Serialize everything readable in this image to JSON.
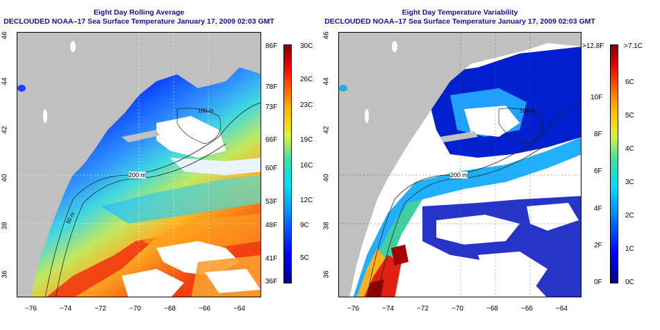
{
  "left_panel": {
    "title_line1": "Eight Day Rolling Average",
    "title_line2": "DECLOUDED NOAA–17 Sea Surface Temperature January 17, 2009 02:03 GMT",
    "x_ticks": [
      "−76",
      "−74",
      "−72",
      "−70",
      "−68",
      "−66",
      "−64"
    ],
    "y_ticks": [
      "46",
      "44",
      "42",
      "40",
      "38",
      "36"
    ],
    "contour_labels": [
      "200 m",
      "50 m",
      "100 m"
    ],
    "colorbar_f": [
      "86F",
      "78F",
      "73F",
      "66F",
      "60F",
      "53F",
      "48F",
      "41F",
      "36F"
    ],
    "colorbar_c": [
      "30C",
      "26C",
      "23C",
      "19C",
      "16C",
      "12C",
      "9C",
      "5C"
    ]
  },
  "right_panel": {
    "title_line1": "Eight Day Temperature Variability",
    "title_line2": "DECLOUDED NOAA–17 Sea Surface Temperature January 17, 2009 02:03 GMT",
    "x_ticks": [
      "−76",
      "−74",
      "−72",
      "−70",
      "−68",
      "−66",
      "−64"
    ],
    "y_ticks": [
      "46",
      "44",
      "42",
      "40",
      "38",
      "36"
    ],
    "contour_labels": [
      "200 m",
      "100 m"
    ],
    "colorbar_f": [
      ">12.8F",
      "10F",
      "8F",
      "6F",
      "4F",
      "2F",
      "0F"
    ],
    "colorbar_c": [
      ">7.1C",
      "6C",
      "5C",
      "4C",
      "3C",
      "2C",
      "1C",
      "0C"
    ]
  },
  "colors": {
    "land": "#c0c0c0",
    "cloud": "#ffffff",
    "title": "#1010a0",
    "colormap": [
      "#00008b",
      "#0000ff",
      "#0080ff",
      "#00d8ff",
      "#40e0a0",
      "#e0f040",
      "#ffc000",
      "#ff6000",
      "#e00000",
      "#800000"
    ]
  }
}
